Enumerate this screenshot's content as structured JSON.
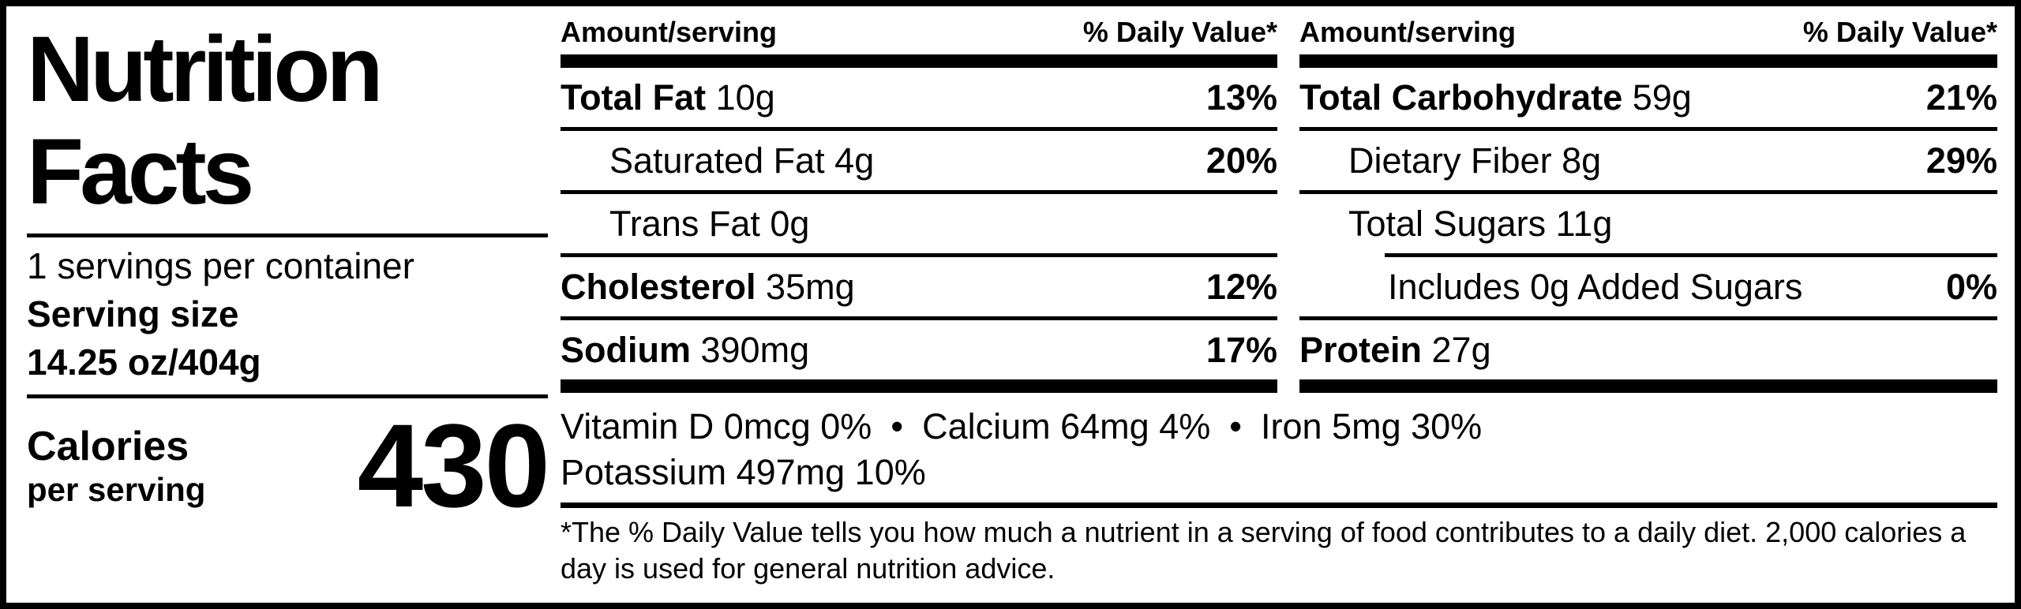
{
  "title": {
    "line1": "Nutrition",
    "line2": "Facts"
  },
  "serving": {
    "per_container": "1 servings per container",
    "serving_size_label": "Serving size",
    "serving_size_value": "14.25 oz/404g"
  },
  "calories": {
    "label": "Calories",
    "sublabel": "per serving",
    "value": "430"
  },
  "columns": {
    "middle": {
      "header_amount": "Amount/serving",
      "header_dv": "% Daily Value*",
      "rows": [
        {
          "bold": "Total Fat",
          "rest": " 10g",
          "dv": "13%"
        },
        {
          "bold": "",
          "rest": "Saturated Fat 4g",
          "dv": "20%"
        },
        {
          "bold": "",
          "rest": "Trans Fat 0g",
          "dv": ""
        },
        {
          "bold": "Cholesterol",
          "rest": " 35mg",
          "dv": "12%"
        },
        {
          "bold": "Sodium",
          "rest": " 390mg",
          "dv": "17%"
        }
      ]
    },
    "right": {
      "header_amount": "Amount/serving",
      "header_dv": "% Daily Value*",
      "rows": [
        {
          "bold": "Total Carbohydrate",
          "rest": " 59g",
          "dv": "21%"
        },
        {
          "bold": "",
          "rest": "Dietary Fiber 8g",
          "dv": "29%"
        },
        {
          "bold": "",
          "rest": "Total Sugars 11g",
          "dv": ""
        },
        {
          "bold": "",
          "rest": "Includes 0g Added Sugars",
          "dv": "0%"
        },
        {
          "bold": "Protein",
          "rest": " 27g",
          "dv": ""
        }
      ]
    }
  },
  "vitamins": {
    "separator": "•",
    "line1": [
      "Vitamin D 0mcg 0%",
      "Calcium 64mg 4%",
      "Iron 5mg 30%"
    ],
    "line2": [
      "Potassium 497mg 10%"
    ]
  },
  "footnote": "*The % Daily Value tells you how much a nutrient in a serving of food contributes to a daily diet. 2,000 calories a day is used for general nutrition advice.",
  "colors": {
    "ink": "#000000",
    "paper": "#ffffff"
  }
}
